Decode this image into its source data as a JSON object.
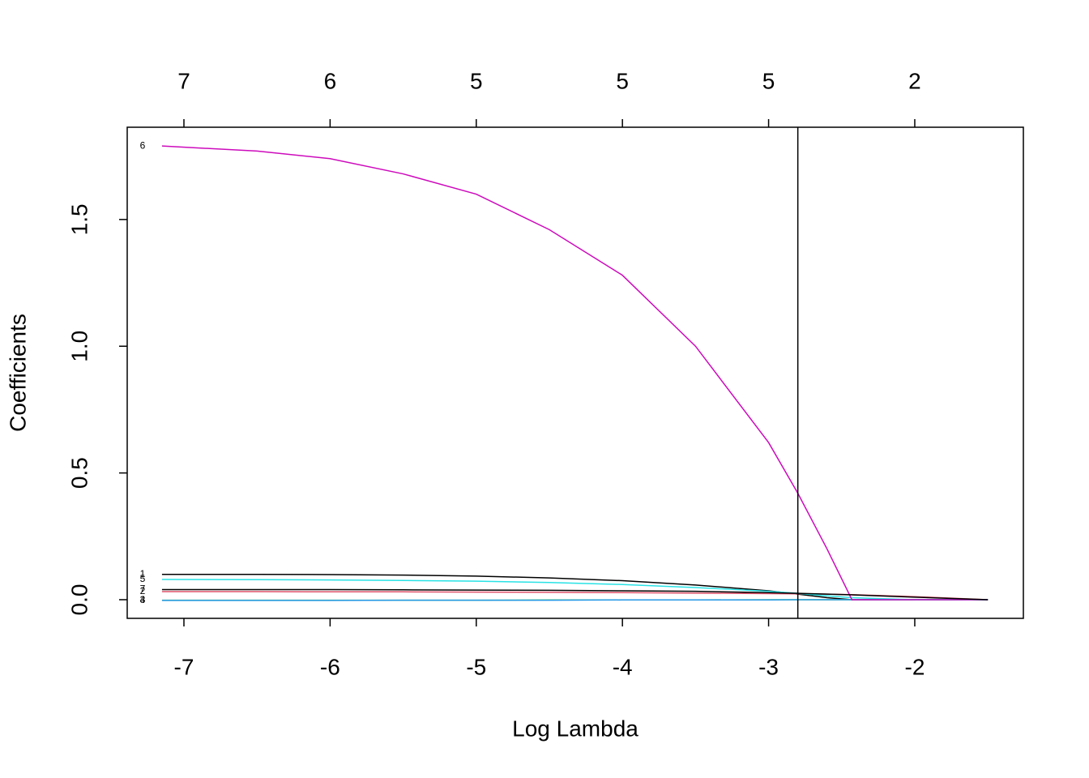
{
  "chart_data": {
    "type": "line",
    "x_label": "Log Lambda",
    "y_label": "Coefficients",
    "x": [
      -7.15,
      -6.5,
      -6,
      -5.5,
      -5,
      -4.5,
      -4,
      -3.5,
      -3,
      -2.8,
      -2.6,
      -2.43,
      -2,
      -1.5
    ],
    "series": [
      {
        "name": "1",
        "color": "#000000",
        "values": [
          0.1,
          0.1,
          0.099,
          0.097,
          0.093,
          0.086,
          0.075,
          0.058,
          0.035,
          0.022,
          0.008,
          0,
          0,
          0
        ]
      },
      {
        "name": "2",
        "color": "#DF536B",
        "values": [
          0.032,
          0.032,
          0.031,
          0.031,
          0.03,
          0.029,
          0.028,
          0.026,
          0.024,
          0.023,
          0.022,
          0.02,
          0.012,
          0
        ]
      },
      {
        "name": "3",
        "color": "#61D04F",
        "values": [
          -0.002,
          -0.002,
          -0.002,
          -0.002,
          -0.002,
          -0.001,
          -0.001,
          -0.001,
          0,
          0,
          0,
          0,
          0,
          0
        ]
      },
      {
        "name": "4",
        "color": "#2297E6",
        "values": [
          -0.003,
          -0.003,
          -0.003,
          -0.002,
          -0.002,
          -0.002,
          -0.001,
          -0.001,
          -0.001,
          0,
          0,
          0,
          0,
          0
        ]
      },
      {
        "name": "5",
        "color": "#28E2E5",
        "values": [
          0.08,
          0.079,
          0.078,
          0.076,
          0.073,
          0.068,
          0.06,
          0.048,
          0.033,
          0.025,
          0.015,
          0.008,
          0,
          0
        ]
      },
      {
        "name": "6",
        "color": "#CD0BBC",
        "values": [
          1.79,
          1.77,
          1.74,
          1.68,
          1.6,
          1.46,
          1.28,
          1.0,
          0.62,
          0.42,
          0.2,
          0.0,
          0,
          0
        ]
      },
      {
        "name": "7",
        "color": "#000000",
        "values": [
          0.04,
          0.04,
          0.04,
          0.039,
          0.038,
          0.037,
          0.035,
          0.033,
          0.028,
          0.025,
          0.022,
          0.019,
          0.01,
          0
        ]
      }
    ],
    "xlim": [
      -7.388,
      -1.257
    ],
    "ylim": [
      -0.0736,
      1.864
    ],
    "xticks": [
      -7,
      -6,
      -5,
      -4,
      -3,
      -2
    ],
    "top_tick_labels": [
      "7",
      "6",
      "5",
      "5",
      "5",
      "2"
    ],
    "yticks": [
      {
        "value": 0,
        "label": "0.0"
      },
      0.5,
      {
        "value": 1,
        "label": "1.0"
      },
      1.5
    ],
    "vline": -2.8
  }
}
